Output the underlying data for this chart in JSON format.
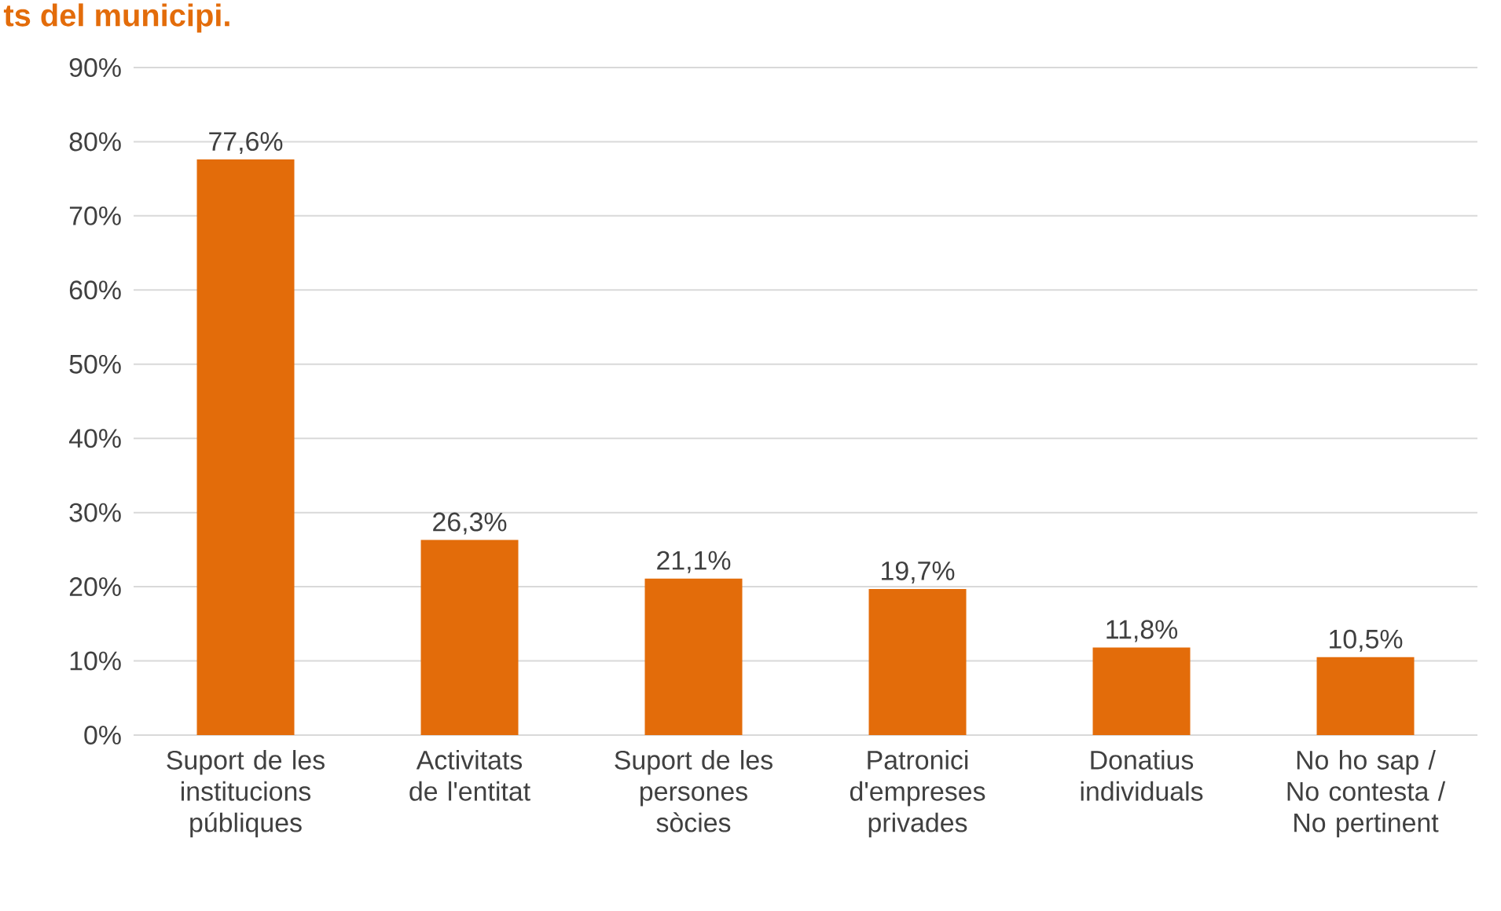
{
  "chart_data": {
    "type": "bar",
    "title": "ts del municipi.",
    "categories": [
      "Suport de les institucions públiques",
      "Activitats de l'entitat",
      "Suport de les persones sòcies",
      "Patronici d'empreses privades",
      "Donatius individuals",
      "No ho sap / No contesta / No pertinent"
    ],
    "values": [
      77.6,
      26.3,
      21.1,
      19.7,
      11.8,
      10.5
    ],
    "value_labels": [
      "77,6%",
      "26,3%",
      "21,1%",
      "19,7%",
      "11,8%",
      "10,5%"
    ],
    "color": "#e36c0a",
    "ylim": [
      0,
      90
    ],
    "yticks": [
      {
        "value": 0,
        "label": "0%"
      },
      {
        "value": 10,
        "label": "10%"
      },
      {
        "value": 20,
        "label": "20%"
      },
      {
        "value": 30,
        "label": "30%"
      },
      {
        "value": 40,
        "label": "40%"
      },
      {
        "value": 50,
        "label": "50%"
      },
      {
        "value": 60,
        "label": "60%"
      },
      {
        "value": 70,
        "label": "70%"
      },
      {
        "value": 80,
        "label": "80%"
      },
      {
        "value": 90,
        "label": "90%"
      }
    ],
    "grid": "y"
  }
}
